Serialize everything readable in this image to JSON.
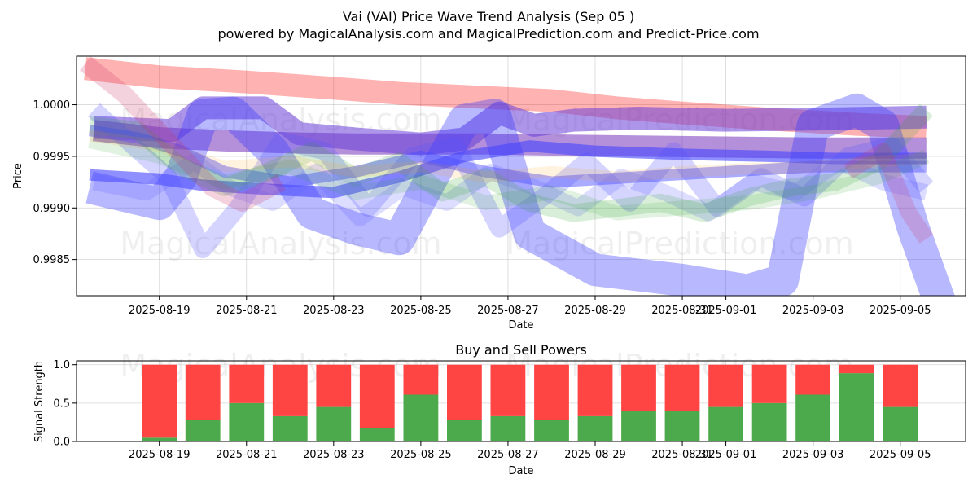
{
  "chart_data": [
    {
      "type": "line",
      "title": "Vai (VAI) Price Wave Trend Analysis (Sep 05 )",
      "subtitle": "powered by MagicalAnalysis.com and MagicalPrediction.com and Predict-Price.com",
      "xlabel": "Date",
      "ylabel": "Price",
      "ylim": [
        0.99815,
        1.00047
      ],
      "xlim": [
        -1.9,
        18.5
      ],
      "grid": true,
      "date_origin": "2025-08-19",
      "xticks": [
        {
          "label": "2025-08-19",
          "day": 0
        },
        {
          "label": "2025-08-21",
          "day": 2
        },
        {
          "label": "2025-08-23",
          "day": 4
        },
        {
          "label": "2025-08-25",
          "day": 6
        },
        {
          "label": "2025-08-27",
          "day": 8
        },
        {
          "label": "2025-08-29",
          "day": 10
        },
        {
          "label": "2025-08-31",
          "day": 12
        },
        {
          "label": "2025-09-01",
          "day": 13
        },
        {
          "label": "2025-09-03",
          "day": 15
        },
        {
          "label": "2025-09-05",
          "day": 17
        }
      ],
      "yticks": [
        {
          "label": "0.9985",
          "value": 0.9985
        },
        {
          "label": "0.9990",
          "value": 0.999
        },
        {
          "label": "0.9995",
          "value": 0.9995
        },
        {
          "label": "1.0000",
          "value": 1.0
        }
      ],
      "watermarks": [
        "MagicalAnalysis.com",
        "MagicalPrediction.com",
        "MagicalAnalysis.com",
        "MagicalPrediction.com"
      ],
      "series": [
        {
          "name": "red-band",
          "color": "#ff0000",
          "opacity": 0.3,
          "width": 28,
          "x": [
            -1.7,
            0,
            2,
            4,
            5.5,
            7,
            9,
            10.5,
            12,
            14,
            16,
            17.6
          ],
          "y": [
            1.00035,
            1.00027,
            1.00022,
            1.00016,
            1.00011,
            1.00008,
            1.00004,
            0.99997,
            0.99992,
            0.99986,
            0.99981,
            0.99978
          ]
        },
        {
          "name": "purple-band",
          "color": "#7733bb",
          "opacity": 0.55,
          "width": 26,
          "x": [
            -1.5,
            0,
            1.5,
            3,
            4.5,
            6,
            7.5,
            9,
            11,
            13,
            15,
            17.6
          ],
          "y": [
            0.99975,
            0.99968,
            0.99965,
            0.99963,
            0.99962,
            0.99962,
            0.99962,
            0.99961,
            0.9996,
            0.99959,
            0.99958,
            0.99958
          ]
        },
        {
          "name": "purple-wave",
          "color": "#6a3fd8",
          "opacity": 0.55,
          "width": 28,
          "x": [
            -1.5,
            0.3,
            1.0,
            2.4,
            3.2,
            4.5,
            6,
            7.0,
            7.8,
            8.6,
            9.5,
            11,
            13,
            15,
            17.6
          ],
          "y": [
            0.99978,
            0.99975,
            0.99997,
            0.99997,
            0.99972,
            0.99967,
            0.99962,
            0.99967,
            0.99992,
            0.9998,
            0.99985,
            0.99987,
            0.99985,
            0.99986,
            0.99988
          ]
        },
        {
          "name": "blue-main-wave",
          "color": "#3333ff",
          "opacity": 0.35,
          "width": 40,
          "x": [
            -1.6,
            0,
            0.5,
            1.0,
            1.7,
            2.6,
            3.5,
            4.5,
            5.5,
            6.2,
            7.0,
            7.7,
            8.5,
            10,
            12,
            13.5,
            14.3,
            15.0,
            16.0,
            16.6,
            17.3,
            17.9
          ],
          "y": [
            0.9992,
            0.99904,
            0.9993,
            0.9999,
            0.99992,
            0.99955,
            0.99895,
            0.9988,
            0.9987,
            0.99925,
            0.99985,
            0.9999,
            0.99875,
            0.9984,
            0.9983,
            0.9982,
            0.9983,
            0.9998,
            0.99995,
            0.9998,
            0.9988,
            0.9981
          ]
        },
        {
          "name": "blue-thin-1",
          "color": "#4444ff",
          "opacity": 0.6,
          "width": 14,
          "x": [
            -1.6,
            0,
            1.0,
            2.5,
            4,
            5.5,
            7,
            8.5,
            10,
            12,
            14,
            15.5,
            17.6
          ],
          "y": [
            0.99932,
            0.99928,
            0.99922,
            0.99918,
            0.99915,
            0.9993,
            0.9995,
            0.9996,
            0.99955,
            0.99952,
            0.9995,
            0.99948,
            0.99948
          ]
        },
        {
          "name": "blue-thin-2",
          "color": "#4444ff",
          "opacity": 0.45,
          "width": 14,
          "x": [
            -1.6,
            -0.5,
            0.5,
            1.5,
            3,
            4.5,
            6,
            7.5,
            9,
            11,
            13,
            15,
            17.6
          ],
          "y": [
            0.99975,
            0.99968,
            0.99955,
            0.99935,
            0.99925,
            0.99935,
            0.9995,
            0.99935,
            0.99925,
            0.9993,
            0.99935,
            0.9994,
            0.9994
          ]
        },
        {
          "name": "blue-zig",
          "color": "#5555ff",
          "opacity": 0.25,
          "width": 22,
          "x": [
            -1.5,
            -0.6,
            0.2,
            1.0,
            1.8,
            2.8,
            3.8,
            4.8,
            5.8,
            6.8,
            7.8,
            8.8,
            9.8,
            10.8,
            11.8,
            12.8,
            13.8,
            14.8,
            15.8,
            16.8,
            17.6
          ],
          "y": [
            0.99995,
            0.9996,
            0.9993,
            0.9986,
            0.999,
            0.99965,
            0.99955,
            0.999,
            0.9995,
            0.9996,
            0.9988,
            0.9991,
            0.99945,
            0.99905,
            0.99955,
            0.999,
            0.9993,
            0.9991,
            0.9995,
            0.9996,
            0.9992
          ]
        },
        {
          "name": "blue-zig-2",
          "color": "#6666ff",
          "opacity": 0.22,
          "width": 20,
          "x": [
            -1.5,
            -0.3,
            0.8,
            1.6,
            2.6,
            3.6,
            4.6,
            5.6,
            6.6,
            7.6,
            8.6,
            9.6,
            10.6,
            11.6,
            12.6,
            13.6,
            14.6,
            15.6,
            16.6,
            17.6
          ],
          "y": [
            0.99925,
            0.99915,
            0.99945,
            0.9992,
            0.99905,
            0.99935,
            0.9989,
            0.9992,
            0.99905,
            0.99935,
            0.9992,
            0.999,
            0.9993,
            0.99915,
            0.99895,
            0.99925,
            0.99915,
            0.99945,
            0.99925,
            0.99915
          ]
        },
        {
          "name": "green-band",
          "color": "#2ca02c",
          "opacity": 0.18,
          "width": 22,
          "x": [
            -1.6,
            -0.5,
            0.5,
            1.5,
            2.5,
            3.5,
            4.5,
            5.5,
            6.5,
            7.5,
            8.5,
            9.5,
            10.5,
            11.5,
            12.5,
            13.5,
            14.5,
            15.5,
            16.5,
            17.6
          ],
          "y": [
            0.9998,
            0.99975,
            0.9994,
            0.9992,
            0.99935,
            0.99955,
            0.9993,
            0.99945,
            0.99915,
            0.9993,
            0.99905,
            0.99895,
            0.999,
            0.99905,
            0.99895,
            0.9991,
            0.9992,
            0.99925,
            0.99945,
            0.99995
          ]
        },
        {
          "name": "green-band-2",
          "color": "#2ca02c",
          "opacity": 0.14,
          "width": 18,
          "x": [
            -1.6,
            0,
            1.5,
            3,
            4.5,
            6,
            7.5,
            9,
            10.5,
            12,
            13.5,
            15,
            16.5,
            17.6
          ],
          "y": [
            0.99965,
            0.9995,
            0.99925,
            0.9994,
            0.99915,
            0.99925,
            0.99905,
            0.99915,
            0.99895,
            0.999,
            0.99905,
            0.99915,
            0.9993,
            0.9995
          ]
        },
        {
          "name": "orange-band",
          "color": "#ff9900",
          "opacity": 0.12,
          "width": 14,
          "x": [
            -1.6,
            0,
            1.5,
            3,
            4.5,
            6,
            7.5,
            9,
            10.5,
            12,
            13.5,
            15,
            16.5,
            17.6
          ],
          "y": [
            0.9997,
            0.9996,
            0.9994,
            0.99945,
            0.99935,
            0.9994,
            0.9993,
            0.99935,
            0.9993,
            0.99935,
            0.99938,
            0.9994,
            0.99945,
            0.99948
          ]
        },
        {
          "name": "red-diagonal",
          "color": "#cc3366",
          "opacity": 0.22,
          "width": 22,
          "x": [
            -1.7,
            -0.8,
            0.2,
            1.2,
            1.9,
            2.8
          ],
          "y": [
            1.0004,
            1.0001,
            0.99965,
            0.9992,
            0.99905,
            0.99925
          ]
        },
        {
          "name": "red-diagonal-2",
          "color": "#cc3366",
          "opacity": 0.2,
          "width": 20,
          "x": [
            15.8,
            16.6,
            17.2,
            17.6
          ],
          "y": [
            0.99935,
            0.99955,
            0.99895,
            0.9987
          ]
        }
      ]
    },
    {
      "type": "bar",
      "title": "Buy and Sell Powers",
      "xlabel": "Date",
      "ylabel": "Signal Strength",
      "ylim": [
        0,
        1.05
      ],
      "xlim": [
        -1.9,
        18.5
      ],
      "grid": true,
      "stacked": true,
      "date_origin": "2025-08-19",
      "xticks": [
        {
          "label": "2025-08-19",
          "day": 0
        },
        {
          "label": "2025-08-21",
          "day": 2
        },
        {
          "label": "2025-08-23",
          "day": 4
        },
        {
          "label": "2025-08-25",
          "day": 6
        },
        {
          "label": "2025-08-27",
          "day": 8
        },
        {
          "label": "2025-08-29",
          "day": 10
        },
        {
          "label": "2025-08-31",
          "day": 12
        },
        {
          "label": "2025-09-01",
          "day": 13
        },
        {
          "label": "2025-09-03",
          "day": 15
        },
        {
          "label": "2025-09-05",
          "day": 17
        }
      ],
      "yticks": [
        {
          "label": "0.0",
          "value": 0.0
        },
        {
          "label": "0.5",
          "value": 0.5
        },
        {
          "label": "1.0",
          "value": 1.0
        }
      ],
      "watermarks": [
        "MagicalAnalysis.com",
        "MagicalPrediction.com"
      ],
      "bar_days": [
        0,
        1,
        2,
        3,
        4,
        5,
        6,
        7,
        8,
        9,
        10,
        11,
        12,
        13,
        14,
        15,
        16,
        17
      ],
      "series": [
        {
          "name": "Buy",
          "color": "#4caa4c",
          "values": [
            0.05,
            0.28,
            0.5,
            0.33,
            0.45,
            0.17,
            0.61,
            0.28,
            0.33,
            0.28,
            0.33,
            0.4,
            0.4,
            0.45,
            0.5,
            0.61,
            0.89,
            0.45
          ]
        },
        {
          "name": "Sell",
          "color": "#ff4444",
          "values": [
            0.95,
            0.72,
            0.5,
            0.67,
            0.55,
            0.83,
            0.39,
            0.72,
            0.67,
            0.72,
            0.67,
            0.6,
            0.6,
            0.55,
            0.5,
            0.39,
            0.11,
            0.55
          ]
        }
      ]
    }
  ]
}
